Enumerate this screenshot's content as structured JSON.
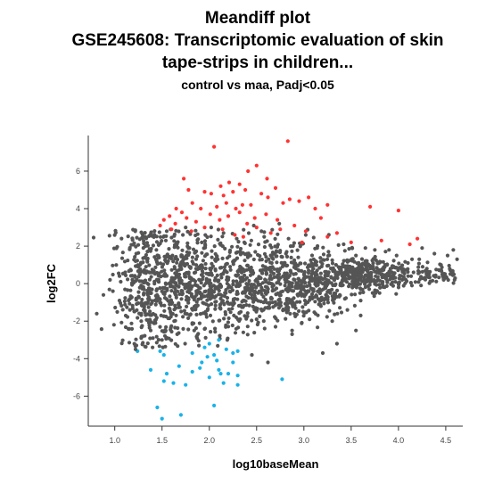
{
  "chart_data": {
    "type": "scatter",
    "title_lines": [
      "Meandiff plot",
      "GSE245608: Transcriptomic evaluation of skin",
      "tape-strips in children..."
    ],
    "subtitle": "control vs maa, Padj<0.05",
    "xlabel": "log10baseMean",
    "ylabel": "log2FC",
    "xlim": [
      0.72,
      4.68
    ],
    "ylim": [
      -7.6,
      7.9
    ],
    "xticks": [
      "1.0",
      "1.5",
      "2.0",
      "2.5",
      "3.0",
      "3.5",
      "4.0",
      "4.5"
    ],
    "yticks": [
      "6",
      "4",
      "2",
      "0",
      "-2",
      "-4",
      "-6"
    ],
    "grid": false,
    "colors": {
      "up": "#ff3333",
      "down": "#1ab2e8",
      "ns": "#555555"
    },
    "series": [
      {
        "key": "up",
        "points": [
          [
            2.05,
            7.3
          ],
          [
            2.83,
            7.6
          ],
          [
            2.5,
            6.3
          ],
          [
            1.73,
            5.6
          ],
          [
            2.41,
            6.0
          ],
          [
            2.61,
            5.6
          ],
          [
            2.21,
            5.4
          ],
          [
            2.32,
            5.3
          ],
          [
            2.12,
            5.2
          ],
          [
            2.7,
            5.1
          ],
          [
            1.78,
            5.0
          ],
          [
            1.95,
            4.9
          ],
          [
            2.02,
            4.8
          ],
          [
            2.15,
            4.7
          ],
          [
            2.25,
            4.9
          ],
          [
            2.38,
            5.0
          ],
          [
            2.55,
            4.8
          ],
          [
            2.62,
            4.6
          ],
          [
            2.85,
            4.5
          ],
          [
            2.95,
            4.4
          ],
          [
            3.05,
            4.6
          ],
          [
            2.18,
            4.3
          ],
          [
            2.35,
            4.2
          ],
          [
            1.82,
            4.3
          ],
          [
            1.91,
            4.0
          ],
          [
            2.08,
            4.1
          ],
          [
            2.28,
            4.0
          ],
          [
            2.44,
            4.2
          ],
          [
            2.78,
            4.3
          ],
          [
            3.12,
            4.0
          ],
          [
            3.25,
            4.2
          ],
          [
            3.7,
            4.1
          ],
          [
            4.0,
            3.9
          ],
          [
            1.65,
            4.0
          ],
          [
            1.71,
            3.8
          ],
          [
            2.01,
            3.7
          ],
          [
            2.2,
            3.6
          ],
          [
            2.32,
            3.8
          ],
          [
            2.48,
            3.5
          ],
          [
            2.6,
            3.7
          ],
          [
            2.72,
            3.4
          ],
          [
            3.18,
            3.5
          ],
          [
            1.58,
            3.6
          ],
          [
            1.76,
            3.5
          ],
          [
            1.86,
            3.3
          ],
          [
            2.11,
            3.4
          ],
          [
            2.4,
            3.2
          ],
          [
            2.9,
            3.1
          ],
          [
            1.52,
            3.4
          ],
          [
            1.64,
            3.2
          ],
          [
            1.95,
            3.0
          ],
          [
            2.14,
            2.9
          ],
          [
            2.5,
            3.0
          ],
          [
            2.75,
            2.9
          ],
          [
            3.02,
            2.8
          ],
          [
            3.35,
            2.7
          ],
          [
            1.48,
            3.1
          ],
          [
            1.6,
            2.9
          ],
          [
            1.81,
            2.8
          ],
          [
            2.27,
            2.6
          ],
          [
            2.36,
            2.5
          ],
          [
            2.65,
            2.7
          ],
          [
            3.25,
            2.5
          ],
          [
            3.5,
            2.2
          ],
          [
            3.82,
            2.3
          ],
          [
            4.12,
            2.1
          ],
          [
            4.2,
            2.4
          ],
          [
            2.98,
            2.2
          ]
        ]
      },
      {
        "key": "down",
        "points": [
          [
            1.45,
            -6.6
          ],
          [
            1.5,
            -7.2
          ],
          [
            1.7,
            -7.0
          ],
          [
            2.05,
            -6.5
          ],
          [
            1.75,
            -5.4
          ],
          [
            1.62,
            -5.3
          ],
          [
            1.52,
            -5.2
          ],
          [
            2.0,
            -5.0
          ],
          [
            2.15,
            -5.3
          ],
          [
            2.3,
            -5.4
          ],
          [
            2.77,
            -5.1
          ],
          [
            2.2,
            -4.8
          ],
          [
            2.3,
            -4.9
          ],
          [
            1.55,
            -4.8
          ],
          [
            1.82,
            -4.7
          ],
          [
            1.9,
            -4.5
          ],
          [
            2.1,
            -4.6
          ],
          [
            2.25,
            -4.2
          ],
          [
            2.08,
            -4.1
          ],
          [
            1.98,
            -3.9
          ],
          [
            2.05,
            -3.8
          ],
          [
            1.82,
            -3.7
          ],
          [
            1.95,
            -3.4
          ],
          [
            2.0,
            -3.2
          ],
          [
            2.18,
            -3.5
          ],
          [
            2.3,
            -3.6
          ],
          [
            1.52,
            -3.8
          ],
          [
            1.68,
            -4.4
          ],
          [
            1.38,
            -4.6
          ],
          [
            1.24,
            -3.6
          ],
          [
            1.48,
            -3.6
          ],
          [
            2.1,
            -3.0
          ],
          [
            2.25,
            -3.7
          ],
          [
            1.92,
            -4.2
          ],
          [
            2.12,
            -4.8
          ]
        ]
      },
      {
        "key": "ns",
        "points": [
          [
            0.81,
            -1.6
          ],
          [
            0.88,
            -0.6
          ],
          [
            0.95,
            0.2
          ],
          [
            1.05,
            -0.9
          ],
          [
            1.11,
            0.6
          ],
          [
            1.16,
            -1.4
          ],
          [
            1.22,
            1.2
          ],
          [
            1.28,
            -2.0
          ],
          [
            1.33,
            0.9
          ],
          [
            1.38,
            -2.5
          ],
          [
            1.44,
            1.8
          ],
          [
            1.5,
            -3.0
          ],
          [
            1.54,
            2.3
          ],
          [
            1.58,
            -1.1
          ],
          [
            1.61,
            1.5
          ],
          [
            1.66,
            -2.7
          ],
          [
            1.69,
            0.3
          ],
          [
            1.72,
            2.6
          ],
          [
            1.76,
            -0.7
          ],
          [
            1.79,
            1.9
          ],
          [
            1.82,
            -2.1
          ],
          [
            1.86,
            0.8
          ],
          [
            1.89,
            -3.3
          ],
          [
            1.92,
            2.2
          ],
          [
            1.96,
            -1.5
          ],
          [
            1.99,
            0.5
          ],
          [
            2.02,
            3.0
          ],
          [
            2.06,
            -2.4
          ],
          [
            2.09,
            1.3
          ],
          [
            2.12,
            -0.8
          ],
          [
            2.15,
            2.7
          ],
          [
            2.19,
            -3.0
          ],
          [
            2.22,
            0.9
          ],
          [
            2.26,
            -1.7
          ],
          [
            2.29,
            2.4
          ],
          [
            2.33,
            0.1
          ],
          [
            2.36,
            -2.6
          ],
          [
            2.4,
            1.6
          ],
          [
            2.43,
            -0.4
          ],
          [
            2.47,
            3.1
          ],
          [
            2.5,
            -1.9
          ],
          [
            2.54,
            0.7
          ],
          [
            2.58,
            2.5
          ],
          [
            2.62,
            -1.3
          ],
          [
            2.66,
            1.1
          ],
          [
            2.7,
            -2.3
          ],
          [
            2.74,
            3.2
          ],
          [
            2.78,
            0.4
          ],
          [
            2.82,
            -0.9
          ],
          [
            2.86,
            2.0
          ],
          [
            2.9,
            -1.6
          ],
          [
            2.94,
            1.4
          ],
          [
            2.98,
            -0.3
          ],
          [
            3.02,
            2.6
          ],
          [
            3.06,
            -1.9
          ],
          [
            3.1,
            0.8
          ],
          [
            3.14,
            1.9
          ],
          [
            3.18,
            -1.2
          ],
          [
            3.22,
            0.3
          ],
          [
            3.26,
            1.7
          ],
          [
            3.3,
            -2.0
          ],
          [
            3.34,
            1.0
          ],
          [
            3.38,
            -0.6
          ],
          [
            3.42,
            2.1
          ],
          [
            3.46,
            -1.4
          ],
          [
            3.5,
            0.6
          ],
          [
            3.55,
            1.5
          ],
          [
            3.6,
            -0.9
          ],
          [
            3.65,
            1.2
          ],
          [
            3.7,
            0.1
          ],
          [
            3.75,
            1.8
          ],
          [
            3.8,
            -0.5
          ],
          [
            3.86,
            1.0
          ],
          [
            3.92,
            0.4
          ],
          [
            3.98,
            1.5
          ],
          [
            4.04,
            0.2
          ],
          [
            4.1,
            1.1
          ],
          [
            4.16,
            0.6
          ],
          [
            4.22,
            1.3
          ],
          [
            4.3,
            0.8
          ],
          [
            4.38,
            1.6
          ],
          [
            4.45,
            1.0
          ],
          [
            4.52,
            1.5
          ],
          [
            4.58,
            1.8
          ],
          [
            4.62,
            1.3
          ],
          [
            3.35,
            -3.2
          ],
          [
            3.2,
            -3.7
          ],
          [
            2.62,
            -4.2
          ],
          [
            2.45,
            -3.8
          ],
          [
            1.4,
            -3.4
          ],
          [
            1.22,
            -3.5
          ],
          [
            1.28,
            -2.9
          ],
          [
            3.55,
            -2.5
          ],
          [
            3.6,
            -1.7
          ],
          [
            1.55,
            2.8
          ],
          [
            1.75,
            3.0
          ],
          [
            3.65,
            1.9
          ],
          [
            3.9,
            1.8
          ],
          [
            4.25,
            1.9
          ],
          [
            0.98,
            -0.4
          ],
          [
            1.05,
            0.4
          ],
          [
            1.2,
            0.1
          ],
          [
            1.3,
            -0.2
          ],
          [
            1.42,
            0.0
          ],
          [
            1.6,
            0.2
          ],
          [
            1.8,
            -0.1
          ],
          [
            2.0,
            0.0
          ],
          [
            2.2,
            0.2
          ],
          [
            2.4,
            -0.2
          ],
          [
            2.6,
            0.1
          ],
          [
            2.8,
            -0.1
          ],
          [
            3.0,
            0.2
          ],
          [
            3.2,
            0.0
          ],
          [
            3.4,
            -0.1
          ],
          [
            3.6,
            0.2
          ]
        ]
      }
    ]
  }
}
